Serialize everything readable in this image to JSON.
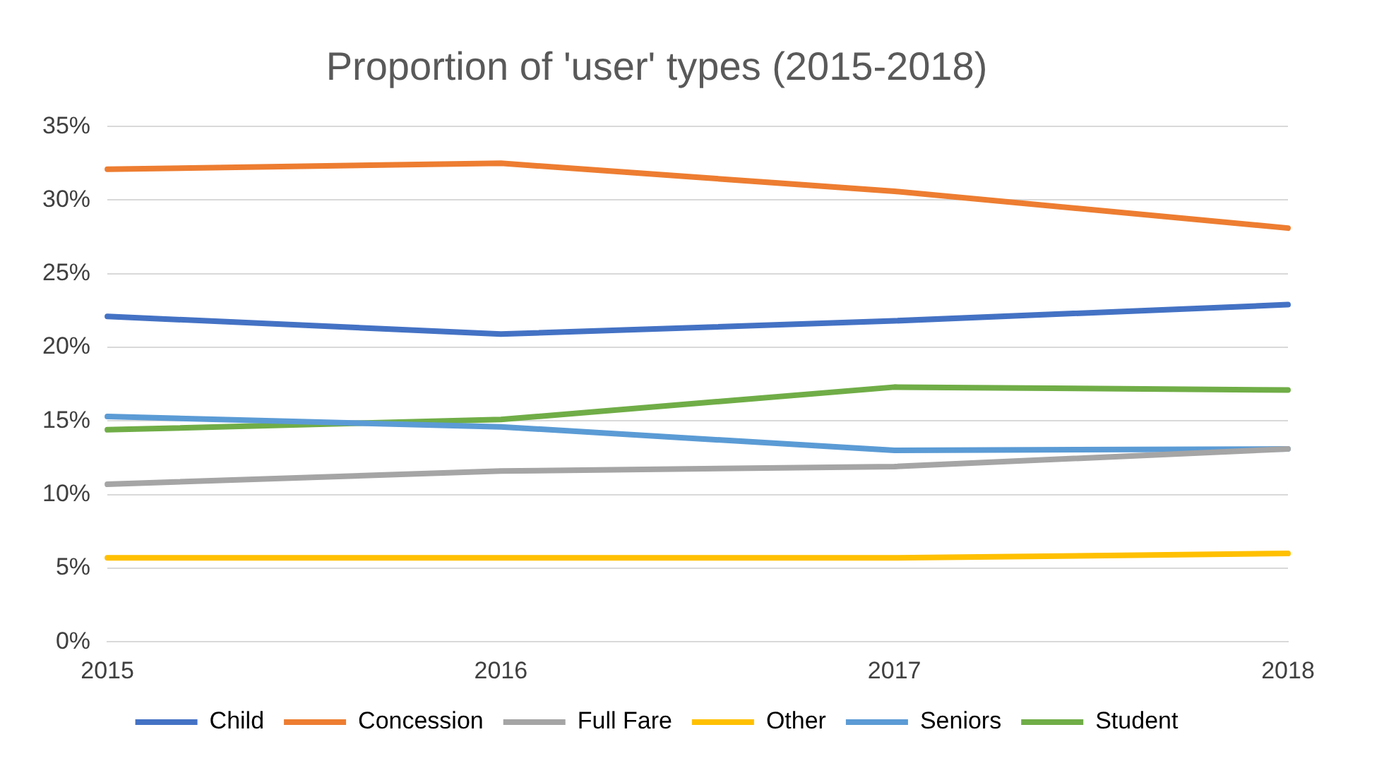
{
  "chart_data": {
    "type": "line",
    "title": "Proportion of 'user' types (2015-2018)",
    "categories": [
      "2015",
      "2016",
      "2017",
      "2018"
    ],
    "series": [
      {
        "name": "Child",
        "color": "#4472c4",
        "values": [
          22.1,
          20.9,
          21.8,
          22.9
        ]
      },
      {
        "name": "Concession",
        "color": "#ed7d31",
        "values": [
          32.1,
          32.5,
          30.6,
          28.1
        ]
      },
      {
        "name": "Full Fare",
        "color": "#a5a5a5",
        "values": [
          10.7,
          11.6,
          11.9,
          13.1
        ]
      },
      {
        "name": "Other",
        "color": "#ffc000",
        "values": [
          5.7,
          5.7,
          5.7,
          6.0
        ]
      },
      {
        "name": "Seniors",
        "color": "#5b9bd5",
        "values": [
          15.3,
          14.6,
          13.0,
          13.1
        ]
      },
      {
        "name": "Student",
        "color": "#70ad47",
        "values": [
          14.4,
          15.1,
          17.3,
          17.1
        ]
      }
    ],
    "ylim": [
      0,
      35
    ],
    "yticks": [
      {
        "value": 0,
        "label": "0%"
      },
      {
        "value": 5,
        "label": "5%"
      },
      {
        "value": 10,
        "label": "10%"
      },
      {
        "value": 15,
        "label": "15%"
      },
      {
        "value": 20,
        "label": "20%"
      },
      {
        "value": 25,
        "label": "25%"
      },
      {
        "value": 30,
        "label": "30%"
      },
      {
        "value": 35,
        "label": "35%"
      }
    ],
    "grid": "y",
    "legend": "bottom",
    "marker": "none",
    "line_style": "solid"
  }
}
